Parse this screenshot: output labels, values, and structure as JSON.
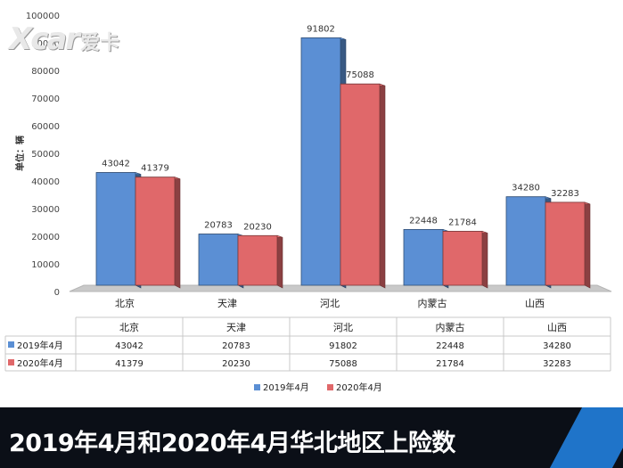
{
  "logo": {
    "mark": "Xcar",
    "text": "爱卡"
  },
  "banner": {
    "title": "2019年4月和2020年4月华北地区上险数"
  },
  "colors": {
    "series_2019": "#5b8fd4",
    "series_2020": "#e0686a",
    "floor": "#c9c9c9",
    "banner_bg": "#0b0f17",
    "banner_accent": "#1f74c9"
  },
  "chart_data": {
    "type": "bar",
    "title": "",
    "xlabel": "",
    "ylabel": "单位：辆",
    "ylim": [
      0,
      100000
    ],
    "yticks": [
      "0",
      "10000",
      "20000",
      "30000",
      "40000",
      "50000",
      "60000",
      "70000",
      "80000",
      "90000",
      "100000"
    ],
    "categories": [
      "北京",
      "天津",
      "河北",
      "内蒙古",
      "山西"
    ],
    "series": [
      {
        "name": "2019年4月",
        "values": [
          43042,
          20783,
          91802,
          22448,
          34280
        ]
      },
      {
        "name": "2020年4月",
        "values": [
          41379,
          20230,
          75088,
          21784,
          32283
        ]
      }
    ],
    "legend": "bottom",
    "data_table": true
  }
}
